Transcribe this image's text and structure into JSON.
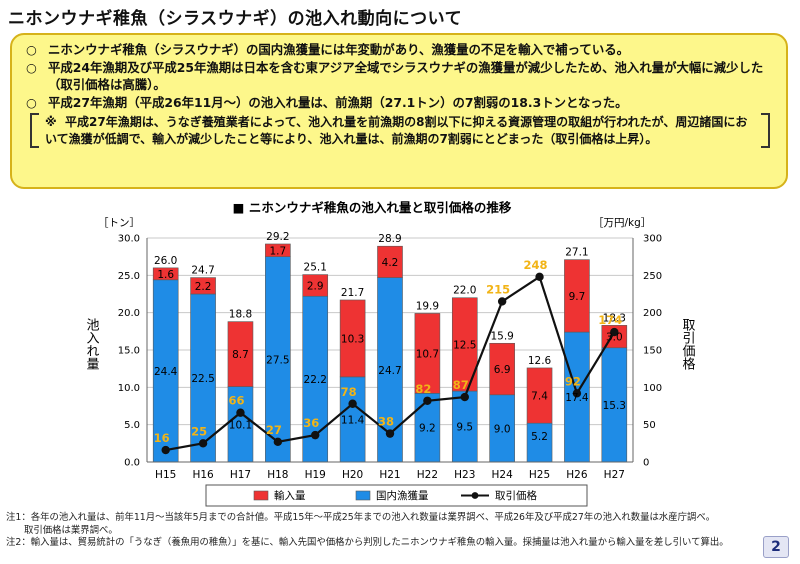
{
  "title": "ニホンウナギ稚魚（シラスウナギ）の池入れ動向について",
  "summary": {
    "bullet_mark": "○",
    "bullets": [
      "ニホンウナギ稚魚（シラスウナギ）の国内漁獲量には年変動があり、漁獲量の不足を輸入で補っている。",
      "平成24年漁期及び平成25年漁期は日本を含む東アジア全域でシラスウナギの漁獲量が減少したため、池入れ量が大幅に減少した（取引価格は高騰）。",
      "平成27年漁期（平成26年11月～）の池入れ量は、前漁期（27.1トン）の7割弱の18.3トンとなった。"
    ],
    "note_mark": "※",
    "note": "平成27年漁期は、うなぎ養殖業者によって、池入れ量を前漁期の8割以下に抑える資源管理の取組が行われたが、周辺諸国において漁獲が低調で、輸入が減少したこと等により、池入れ量は、前漁期の7割弱にとどまった（取引価格は上昇）。"
  },
  "chart_data": {
    "type": "bar",
    "title": "■ ニホンウナギ稚魚の池入れ量と取引価格の推移",
    "categories": [
      "H15",
      "H16",
      "H17",
      "H18",
      "H19",
      "H20",
      "H21",
      "H22",
      "H23",
      "H24",
      "H25",
      "H26",
      "H27"
    ],
    "series": [
      {
        "name": "国内漁獲量",
        "type": "bar",
        "color": "#1f8ce6",
        "values": [
          24.4,
          22.5,
          10.1,
          27.5,
          22.2,
          11.4,
          24.7,
          9.2,
          9.5,
          9.0,
          5.2,
          17.4,
          15.3
        ]
      },
      {
        "name": "輸入量",
        "type": "bar",
        "color": "#ee3333",
        "values": [
          1.6,
          2.2,
          8.7,
          1.7,
          2.9,
          10.3,
          4.2,
          10.7,
          12.5,
          6.9,
          7.4,
          9.7,
          3.0
        ]
      },
      {
        "name": "取引価格",
        "type": "line",
        "axis": "right",
        "color": "#111111",
        "label_color": "#f2b417",
        "values": [
          16,
          25,
          66,
          27,
          36,
          78,
          38,
          82,
          87,
          215,
          248,
          92,
          174
        ]
      }
    ],
    "totals": [
      26.0,
      24.7,
      18.8,
      29.2,
      25.1,
      21.7,
      28.9,
      19.9,
      22.0,
      15.9,
      12.6,
      27.1,
      18.3
    ],
    "left_axis": {
      "unit": "［トン］",
      "label": "池入れ量",
      "ylim": [
        0,
        30
      ],
      "ticks": [
        "0.0",
        "5.0",
        "10.0",
        "15.0",
        "20.0",
        "25.0",
        "30.0"
      ]
    },
    "right_axis": {
      "unit": "［万円/kg］",
      "label": "取引価格",
      "ylim": [
        0,
        300
      ],
      "ticks": [
        "0",
        "50",
        "100",
        "150",
        "200",
        "250",
        "300"
      ]
    },
    "legend_position": "bottom",
    "legend": [
      "輸入量",
      "国内漁獲量",
      "取引価格"
    ]
  },
  "footnotes": [
    "注1：各年の池入れ量は、前年11月～当該年5月までの合計値。平成15年～平成25年までの池入れ数量は業界調べ、平成26年及び平成27年の池入れ数量は水産庁調べ。",
    "取引価格は業界調べ。",
    "注2：輸入量は、貿易統計の「うなぎ（養魚用の稚魚）」を基に、輸入先国や価格から判別したニホンウナギ稚魚の輸入量。採捕量は池入れ量から輸入量を差し引いて算出。"
  ],
  "page_number": "2"
}
